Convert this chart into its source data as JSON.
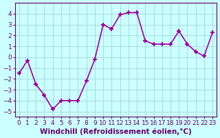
{
  "x": [
    0,
    1,
    2,
    3,
    4,
    5,
    6,
    7,
    8,
    9,
    10,
    11,
    12,
    13,
    14,
    15,
    16,
    17,
    18,
    19,
    20,
    21,
    22,
    23
  ],
  "y": [
    -1.5,
    -0.3,
    -2.5,
    -3.5,
    -4.8,
    -4.0,
    -4.0,
    -4.0,
    -2.2,
    -0.2,
    3.0,
    2.6,
    3.9,
    4.1,
    4.1,
    1.5,
    1.2,
    1.2,
    1.2,
    2.4,
    1.2,
    0.5,
    0.1,
    2.3
  ],
  "line_color": "#990099",
  "marker": "+",
  "background_color": "#ccffff",
  "grid_color": "#aadddd",
  "xlabel": "Windchill (Refroidissement éolien,°C)",
  "xlim": [
    -0.5,
    23.5
  ],
  "ylim": [
    -5.5,
    5.0
  ],
  "yticks": [
    -5,
    -4,
    -3,
    -2,
    -1,
    0,
    1,
    2,
    3,
    4
  ],
  "xtick_labels": [
    "0",
    "1",
    "2",
    "3",
    "4",
    "5",
    "6",
    "7",
    "8",
    "9",
    "10",
    "11",
    "12",
    "13",
    "14",
    "15",
    "16",
    "17",
    "18",
    "19",
    "20",
    "21",
    "22",
    "23"
  ],
  "tick_color": "#660066",
  "spine_color": "#660066",
  "xlabel_fontsize": 7.5,
  "tick_fontsize": 6.5,
  "marker_size": 5,
  "line_width": 1.2
}
